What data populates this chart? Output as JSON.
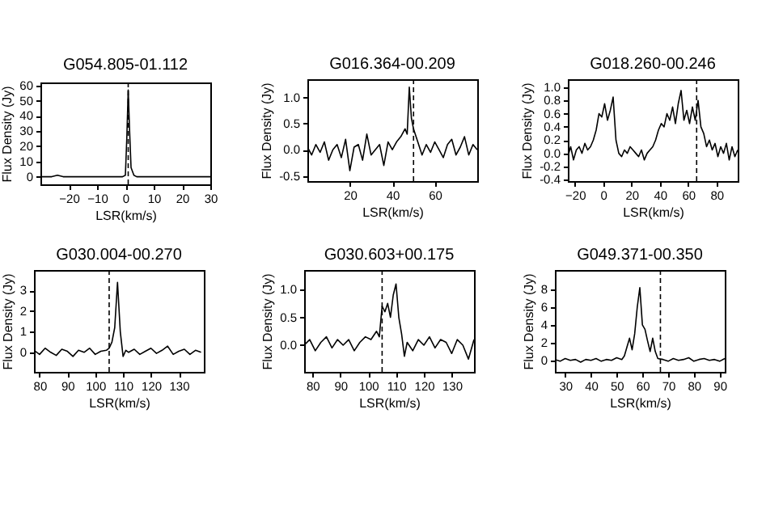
{
  "chart_data": [
    {
      "type": "line",
      "title": "G054.805-01.112",
      "xlabel": "LSR(km/s)",
      "ylabel": "Flux Density (Jy)",
      "color": "#000000",
      "x": [
        -30,
        -28,
        -26,
        -24,
        -22,
        -20,
        -18,
        -16,
        -14,
        -12,
        -10,
        -8,
        -6,
        -4,
        -2,
        -1,
        0,
        0.5,
        1,
        1.5,
        2,
        3,
        4,
        6,
        8,
        10,
        12,
        14,
        16,
        18,
        20,
        22,
        24,
        26,
        28,
        30
      ],
      "values": [
        0,
        0,
        0,
        1,
        0,
        0,
        0,
        0,
        0,
        0,
        0,
        0,
        0,
        0,
        0,
        0,
        1,
        25,
        57,
        30,
        6,
        1,
        0,
        0,
        0,
        0,
        0,
        0,
        0,
        0,
        0,
        0,
        0,
        0,
        0,
        0
      ],
      "xlim": [
        -30,
        30
      ],
      "xticks": [
        -20,
        -10,
        0,
        10,
        20,
        30
      ],
      "ylim": [
        -5,
        62
      ],
      "yticks": [
        0,
        10,
        20,
        30,
        40,
        50,
        60
      ],
      "ref_lines": [
        {
          "axis": "x",
          "value": 1,
          "line_style": "dashed"
        }
      ]
    },
    {
      "type": "line",
      "title": "G016.364-00.209",
      "xlabel": "LSR(km/s)",
      "ylabel": "Flux Density (Jy)",
      "color": "#000000",
      "x": [
        0,
        2,
        4,
        6,
        8,
        10,
        12,
        14,
        16,
        18,
        20,
        22,
        24,
        26,
        28,
        30,
        32,
        34,
        36,
        38,
        40,
        42,
        44,
        46,
        47,
        48,
        49,
        50,
        52,
        54,
        56,
        58,
        60,
        62,
        64,
        66,
        68,
        70,
        72,
        74,
        76,
        78,
        80
      ],
      "values": [
        0.05,
        -0.1,
        0.1,
        -0.05,
        0.15,
        -0.2,
        0.0,
        0.1,
        -0.15,
        0.2,
        -0.4,
        0.05,
        0.1,
        -0.2,
        0.3,
        -0.1,
        0.0,
        0.1,
        -0.3,
        0.15,
        0.0,
        0.15,
        0.25,
        0.4,
        0.3,
        1.2,
        0.6,
        0.4,
        0.15,
        -0.1,
        0.1,
        -0.05,
        0.15,
        0.0,
        -0.15,
        0.1,
        0.2,
        -0.1,
        0.05,
        0.25,
        -0.1,
        0.1,
        0.0
      ],
      "xlim": [
        0,
        80
      ],
      "xticks": [
        20,
        40,
        60
      ],
      "ylim": [
        -0.6,
        1.35
      ],
      "yticks": [
        {
          "value": -0.5,
          "label": "-0.5"
        },
        {
          "value": 0,
          "label": "0.0"
        },
        {
          "value": 0.5,
          "label": "0.5"
        },
        {
          "value": 1,
          "label": "1.0"
        }
      ],
      "ref_lines": [
        {
          "axis": "x",
          "value": 50,
          "line_style": "dashed"
        }
      ]
    },
    {
      "type": "line",
      "title": "G018.260-00.246",
      "xlabel": "LSR(km/s)",
      "ylabel": "Flux Density (Jy)",
      "color": "#000000",
      "x": [
        -25,
        -23,
        -21,
        -19,
        -17,
        -15,
        -13,
        -11,
        -9,
        -7,
        -5,
        -3,
        -1,
        1,
        3,
        5,
        7,
        9,
        11,
        13,
        15,
        17,
        19,
        21,
        23,
        25,
        27,
        29,
        31,
        33,
        35,
        37,
        39,
        41,
        43,
        45,
        47,
        49,
        51,
        53,
        55,
        57,
        59,
        61,
        63,
        65,
        67,
        69,
        71,
        73,
        75,
        77,
        79,
        81,
        83,
        85,
        87,
        89,
        91,
        93,
        95
      ],
      "values": [
        -0.05,
        0.1,
        -0.1,
        0.05,
        0.1,
        0.0,
        0.15,
        0.05,
        0.1,
        0.2,
        0.35,
        0.6,
        0.55,
        0.75,
        0.5,
        0.65,
        0.85,
        0.2,
        0.0,
        -0.05,
        0.05,
        0.0,
        0.1,
        0.05,
        0.0,
        -0.05,
        0.05,
        -0.1,
        0.0,
        0.05,
        0.1,
        0.2,
        0.35,
        0.45,
        0.4,
        0.6,
        0.5,
        0.7,
        0.45,
        0.75,
        0.95,
        0.5,
        0.65,
        0.45,
        0.7,
        0.5,
        0.8,
        0.4,
        0.3,
        0.1,
        0.2,
        0.05,
        0.15,
        -0.05,
        0.1,
        0.0,
        0.15,
        -0.1,
        0.1,
        -0.05,
        0.05
      ],
      "xlim": [
        -25,
        95
      ],
      "xticks": [
        -20,
        0,
        20,
        40,
        60,
        80
      ],
      "ylim": [
        -0.42,
        1.12
      ],
      "yticks": [
        -0.4,
        -0.2,
        {
          "value": 0,
          "label": "0.0"
        },
        0.2,
        0.4,
        0.6,
        0.8,
        {
          "value": 1,
          "label": "1.0"
        }
      ],
      "ref_lines": [
        {
          "axis": "x",
          "value": 66,
          "line_style": "dashed"
        }
      ]
    },
    {
      "type": "line",
      "title": "G030.004-00.270",
      "xlabel": "LSR(km/s)",
      "ylabel": "Flux Density (Jy)",
      "color": "#000000",
      "x": [
        78,
        80,
        82,
        84,
        86,
        88,
        90,
        92,
        94,
        96,
        98,
        100,
        102,
        104,
        105,
        106,
        107,
        108,
        109,
        110,
        111,
        112,
        114,
        116,
        118,
        120,
        122,
        124,
        126,
        128,
        130,
        132,
        134,
        136,
        138
      ],
      "values": [
        0.1,
        -0.1,
        0.2,
        0.0,
        -0.15,
        0.15,
        0.05,
        -0.2,
        0.1,
        0.0,
        0.2,
        -0.1,
        0.05,
        0.1,
        0.2,
        0.5,
        1.2,
        3.4,
        1.0,
        -0.2,
        0.1,
        0.0,
        0.15,
        -0.1,
        0.05,
        0.2,
        -0.05,
        0.1,
        0.3,
        -0.1,
        0.05,
        0.15,
        -0.1,
        0.1,
        0.0
      ],
      "xlim": [
        78,
        139
      ],
      "xticks": [
        80,
        90,
        100,
        110,
        120,
        130
      ],
      "ylim": [
        -0.95,
        4
      ],
      "yticks": [
        0,
        1,
        2,
        3
      ],
      "ref_lines": [
        {
          "axis": "x",
          "value": 105,
          "line_style": "dashed"
        }
      ]
    },
    {
      "type": "line",
      "title": "G030.603+00.175",
      "xlabel": "LSR(km/s)",
      "ylabel": "Flux Density (Jy)",
      "color": "#000000",
      "x": [
        77,
        79,
        81,
        83,
        85,
        87,
        89,
        91,
        93,
        95,
        97,
        99,
        101,
        103,
        104,
        105,
        106,
        107,
        108,
        109,
        110,
        111,
        112,
        113,
        114,
        116,
        118,
        120,
        122,
        124,
        126,
        128,
        130,
        132,
        134,
        136,
        138
      ],
      "values": [
        0.0,
        0.1,
        -0.1,
        0.05,
        0.15,
        -0.05,
        0.1,
        0.0,
        0.1,
        -0.1,
        0.05,
        0.15,
        0.1,
        0.25,
        0.15,
        0.7,
        0.6,
        0.75,
        0.5,
        0.9,
        1.1,
        0.5,
        0.2,
        -0.2,
        0.05,
        -0.1,
        0.1,
        0.0,
        0.15,
        -0.05,
        0.1,
        0.05,
        -0.15,
        0.1,
        0.0,
        -0.25,
        0.1
      ],
      "xlim": [
        77,
        138
      ],
      "xticks": [
        80,
        90,
        100,
        110,
        120,
        130
      ],
      "ylim": [
        -0.48,
        1.35
      ],
      "yticks": [
        {
          "value": 0,
          "label": "0.0"
        },
        {
          "value": 0.5,
          "label": "0.5"
        },
        {
          "value": 1,
          "label": "1.0"
        }
      ],
      "ref_lines": [
        {
          "axis": "x",
          "value": 105,
          "line_style": "dashed"
        }
      ]
    },
    {
      "type": "line",
      "title": "G049.371-00.350",
      "xlabel": "LSR(km/s)",
      "ylabel": "Flux Density (Jy)",
      "color": "#000000",
      "x": [
        26,
        28,
        30,
        32,
        34,
        36,
        38,
        40,
        42,
        44,
        46,
        48,
        50,
        52,
        53,
        54,
        55,
        56,
        57,
        58,
        59,
        60,
        61,
        62,
        63,
        64,
        65,
        66,
        68,
        70,
        72,
        74,
        76,
        78,
        80,
        82,
        84,
        86,
        88,
        90,
        92
      ],
      "values": [
        0.1,
        -0.1,
        0.2,
        0.0,
        0.1,
        -0.2,
        0.1,
        0.0,
        0.2,
        -0.1,
        0.1,
        0.0,
        0.3,
        0.1,
        0.5,
        1.5,
        2.5,
        1.2,
        3,
        6,
        8.2,
        4,
        3.5,
        2.2,
        1.0,
        2.5,
        1.0,
        0.2,
        0.1,
        -0.1,
        0.2,
        0.0,
        0.1,
        0.3,
        -0.1,
        0.1,
        0.2,
        0.0,
        0.1,
        -0.1,
        0.2
      ],
      "xlim": [
        26,
        92
      ],
      "xticks": [
        30,
        40,
        50,
        60,
        70,
        80,
        90
      ],
      "ylim": [
        -1.3,
        10.2
      ],
      "yticks": [
        0,
        2,
        4,
        6,
        8
      ],
      "ref_lines": [
        {
          "axis": "x",
          "value": 67,
          "line_style": "dashed"
        }
      ]
    }
  ]
}
